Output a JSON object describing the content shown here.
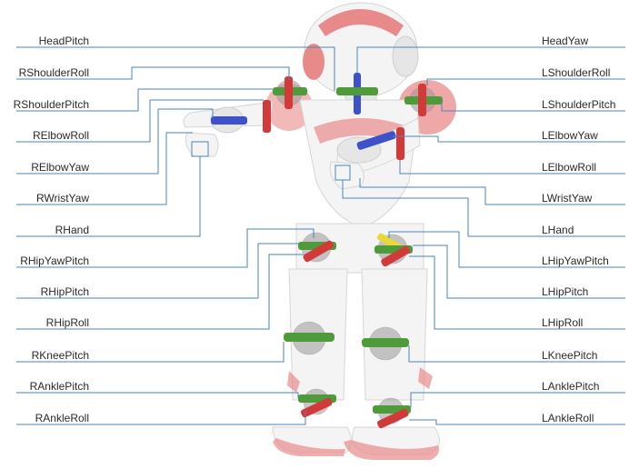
{
  "colors": {
    "leader": "#4a86b8",
    "axis_red": "#d23a3a",
    "axis_green": "#4f9a3a",
    "axis_blue": "#3d52c8",
    "axis_yellow": "#e8d83a",
    "robot_accent": "#e98a8a",
    "robot_shell": "#f4f4f4"
  },
  "labels": {
    "left": [
      "HeadPitch",
      "RShoulderRoll",
      "RShoulderPitch",
      "RElbowRoll",
      "RElbowYaw",
      "RWristYaw",
      "RHand",
      "RHipYawPitch",
      "RHipPitch",
      "RHipRoll",
      "RKneePitch",
      "RAnklePitch",
      "RAnkleRoll"
    ],
    "right": [
      "HeadYaw",
      "LShoulderRoll",
      "LShoulderPitch",
      "LElbowYaw",
      "LElbowRoll",
      "LWristYaw",
      "LHand",
      "LHipYawPitch",
      "LHipPitch",
      "LHipRoll",
      "LKneePitch",
      "LAnklePitch",
      "LAnkleRoll"
    ]
  }
}
